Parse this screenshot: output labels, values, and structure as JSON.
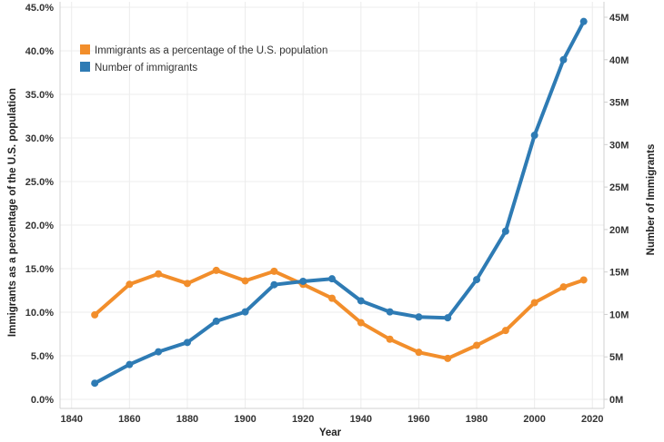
{
  "chart_data": {
    "type": "line",
    "title": "",
    "xlabel": "Year",
    "ylabel_left": "Immigrants as a percentage of the U.S. population",
    "ylabel_right": "Number of Immigrants",
    "xlim": [
      1836,
      2024
    ],
    "ylim_left": [
      0,
      45
    ],
    "ylim_right": [
      0,
      46.2
    ],
    "x_ticks": [
      "1840",
      "1860",
      "1880",
      "1900",
      "1920",
      "1940",
      "1960",
      "1980",
      "2000",
      "2020"
    ],
    "y_left_ticks": [
      "0.0%",
      "5.0%",
      "10.0%",
      "15.0%",
      "20.0%",
      "25.0%",
      "30.0%",
      "35.0%",
      "40.0%",
      "45.0%"
    ],
    "y_right_ticks": [
      "0M",
      "5M",
      "10M",
      "15M",
      "20M",
      "25M",
      "30M",
      "35M",
      "40M",
      "45M"
    ],
    "x": [
      1848,
      1860,
      1870,
      1880,
      1890,
      1900,
      1910,
      1920,
      1930,
      1940,
      1950,
      1960,
      1970,
      1980,
      1990,
      2000,
      2010,
      2017
    ],
    "series": [
      {
        "name": "Immigrants as a percentage of the U.S. population",
        "axis": "left",
        "color": "#f28e2b",
        "values": [
          9.7,
          13.2,
          14.4,
          13.3,
          14.8,
          13.6,
          14.7,
          13.2,
          11.6,
          8.8,
          6.9,
          5.4,
          4.7,
          6.2,
          7.9,
          11.1,
          12.9,
          13.7
        ]
      },
      {
        "name": "Number of immigrants",
        "axis": "right",
        "color": "#2e7bb4",
        "values": [
          1.9,
          4.1,
          5.6,
          6.7,
          9.2,
          10.3,
          13.5,
          13.9,
          14.2,
          11.6,
          10.3,
          9.7,
          9.6,
          14.1,
          19.8,
          31.1,
          40.0,
          44.5
        ]
      }
    ],
    "legend_position": "top-left",
    "grid": true
  }
}
